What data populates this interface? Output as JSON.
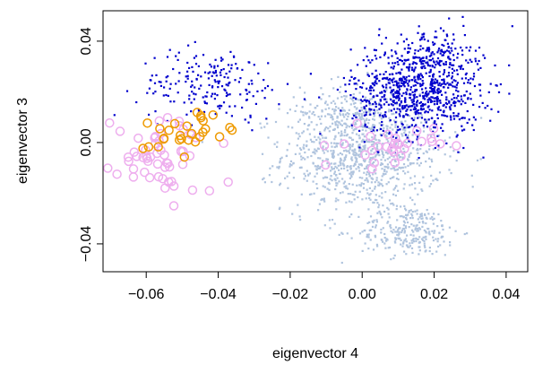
{
  "chart_data": {
    "type": "scatter",
    "xlabel": "eigenvector 4",
    "ylabel": "eigenvector 3",
    "xlim": [
      -0.072,
      0.046
    ],
    "ylim": [
      -0.051,
      0.052
    ],
    "x_ticks": [
      -0.06,
      -0.04,
      -0.02,
      0.0,
      0.02,
      0.04
    ],
    "x_tick_labels": [
      "−0.06",
      "−0.04",
      "−0.02",
      "0.00",
      "0.02",
      "0.04"
    ],
    "y_ticks": [
      -0.04,
      0.0,
      0.04
    ],
    "y_tick_labels": [
      "−0.04",
      "0.00",
      "0.04"
    ],
    "grid": false,
    "legend": "none",
    "series": [
      {
        "color": "#b0c4de",
        "marker": "small-square",
        "clusters": [
          {
            "center": [
              0.0,
              -0.005
            ],
            "spread": [
              0.011,
              0.011
            ],
            "count": 900
          },
          {
            "center": [
              0.013,
              -0.035
            ],
            "spread": [
              0.007,
              0.005
            ],
            "count": 260
          },
          {
            "center": [
              -0.005,
              0.012
            ],
            "spread": [
              0.006,
              0.006
            ],
            "count": 140
          }
        ]
      },
      {
        "color": "#0000cd",
        "marker": "small-square",
        "clusters": [
          {
            "center": [
              0.015,
              0.02
            ],
            "spread": [
              0.009,
              0.009
            ],
            "count": 780
          },
          {
            "center": [
              -0.042,
              0.023
            ],
            "spread": [
              0.01,
              0.007
            ],
            "count": 200
          },
          {
            "center": [
              0.02,
              0.035
            ],
            "spread": [
              0.006,
              0.005
            ],
            "count": 120
          }
        ]
      },
      {
        "color": "#eeaeee",
        "marker": "open-circle",
        "clusters": [
          {
            "center": [
              -0.055,
              -0.005
            ],
            "spread": [
              0.007,
              0.008
            ],
            "count": 55
          },
          {
            "center": [
              0.008,
              -0.002
            ],
            "spread": [
              0.006,
              0.004
            ],
            "count": 30
          }
        ]
      },
      {
        "color": "#ee9a00",
        "marker": "open-circle",
        "clusters": [
          {
            "center": [
              -0.05,
              0.004
            ],
            "spread": [
              0.008,
              0.004
            ],
            "count": 28
          }
        ]
      }
    ]
  }
}
